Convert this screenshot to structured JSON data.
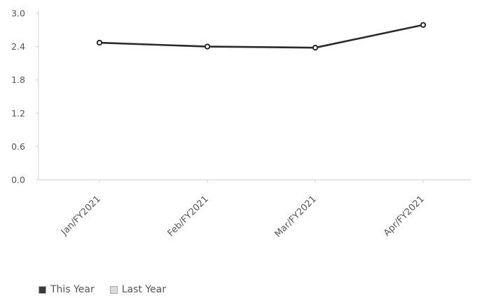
{
  "chart_data": {
    "type": "line",
    "categories": [
      "Jan/FY2021",
      "Feb/FY2021",
      "Mar/FY2021",
      "Apr/FY2021"
    ],
    "series": [
      {
        "name": "This Year",
        "values": [
          2.47,
          2.4,
          2.38,
          2.79
        ],
        "color": "#2a2a2a"
      }
    ],
    "yticks": [
      "3.0",
      "2.4",
      "1.8",
      "1.2",
      "0.6",
      "0.0"
    ],
    "ylim": [
      0,
      3.0
    ],
    "grid": false,
    "legend": {
      "position": "bottom-left",
      "items": [
        {
          "label": "This Year",
          "color": "#3a3a3a"
        },
        {
          "label": "Last Year",
          "color": "#d9dcdc"
        }
      ]
    }
  }
}
